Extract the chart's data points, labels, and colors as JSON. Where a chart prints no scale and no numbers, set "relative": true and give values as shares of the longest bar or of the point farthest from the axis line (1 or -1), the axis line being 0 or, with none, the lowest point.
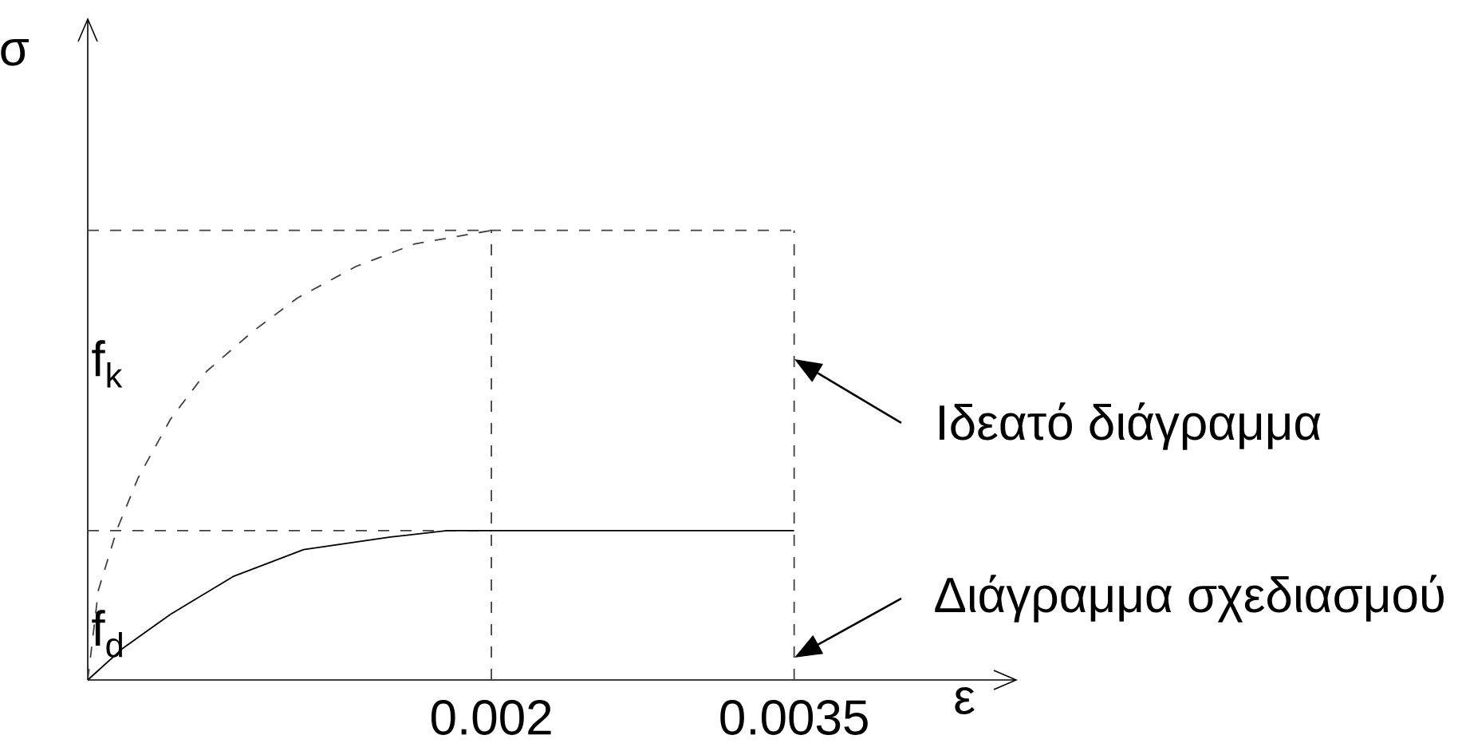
{
  "chart_data": {
    "type": "line",
    "relative": true,
    "xlabel": "ε",
    "ylabel": "σ",
    "xlim": [
      0,
      0.0046
    ],
    "xticks": [
      0.002,
      0.0035
    ],
    "series": [
      {
        "color": "#404040",
        "line_style": "dashed",
        "x": [
          0,
          5.3e-05,
          0.000145,
          0.00025,
          0.00041,
          0.00059,
          0.00082,
          0.00104,
          0.00133,
          0.00162,
          0.002
        ],
        "values": [
          0,
          0.2,
          0.335,
          0.45,
          0.58,
          0.687,
          0.776,
          0.85,
          0.92,
          0.97,
          1
        ]
      },
      {
        "color": "#404040",
        "line_style": "dashed",
        "x": [
          0,
          0.0035
        ],
        "values": [
          1,
          1
        ]
      },
      {
        "color": "#404040",
        "line_style": "dashed",
        "x": [
          0,
          0.002
        ],
        "values": [
          0.332,
          0.332
        ]
      },
      {
        "color": "#000000",
        "line_style": "solid",
        "x": [
          0,
          0.00017,
          0.00041,
          0.00072,
          0.00107,
          0.0015,
          0.00178,
          0.002,
          0.0035
        ],
        "values": [
          0,
          0.069,
          0.146,
          0.23,
          0.29,
          0.318,
          0.332,
          0.332,
          0.332
        ]
      }
    ],
    "ref_lines": [
      {
        "axis": "x",
        "value": 0.002,
        "color": "#404040",
        "line_style": "dashed"
      },
      {
        "axis": "x",
        "value": 0.0035,
        "color": "#404040",
        "line_style": "dashed"
      }
    ],
    "annotations": [
      "f$_{k}$",
      "f$_{d}$",
      "Ιδεατό διάγραμμα",
      "Διάγραμμα σχεδιασμού"
    ]
  }
}
